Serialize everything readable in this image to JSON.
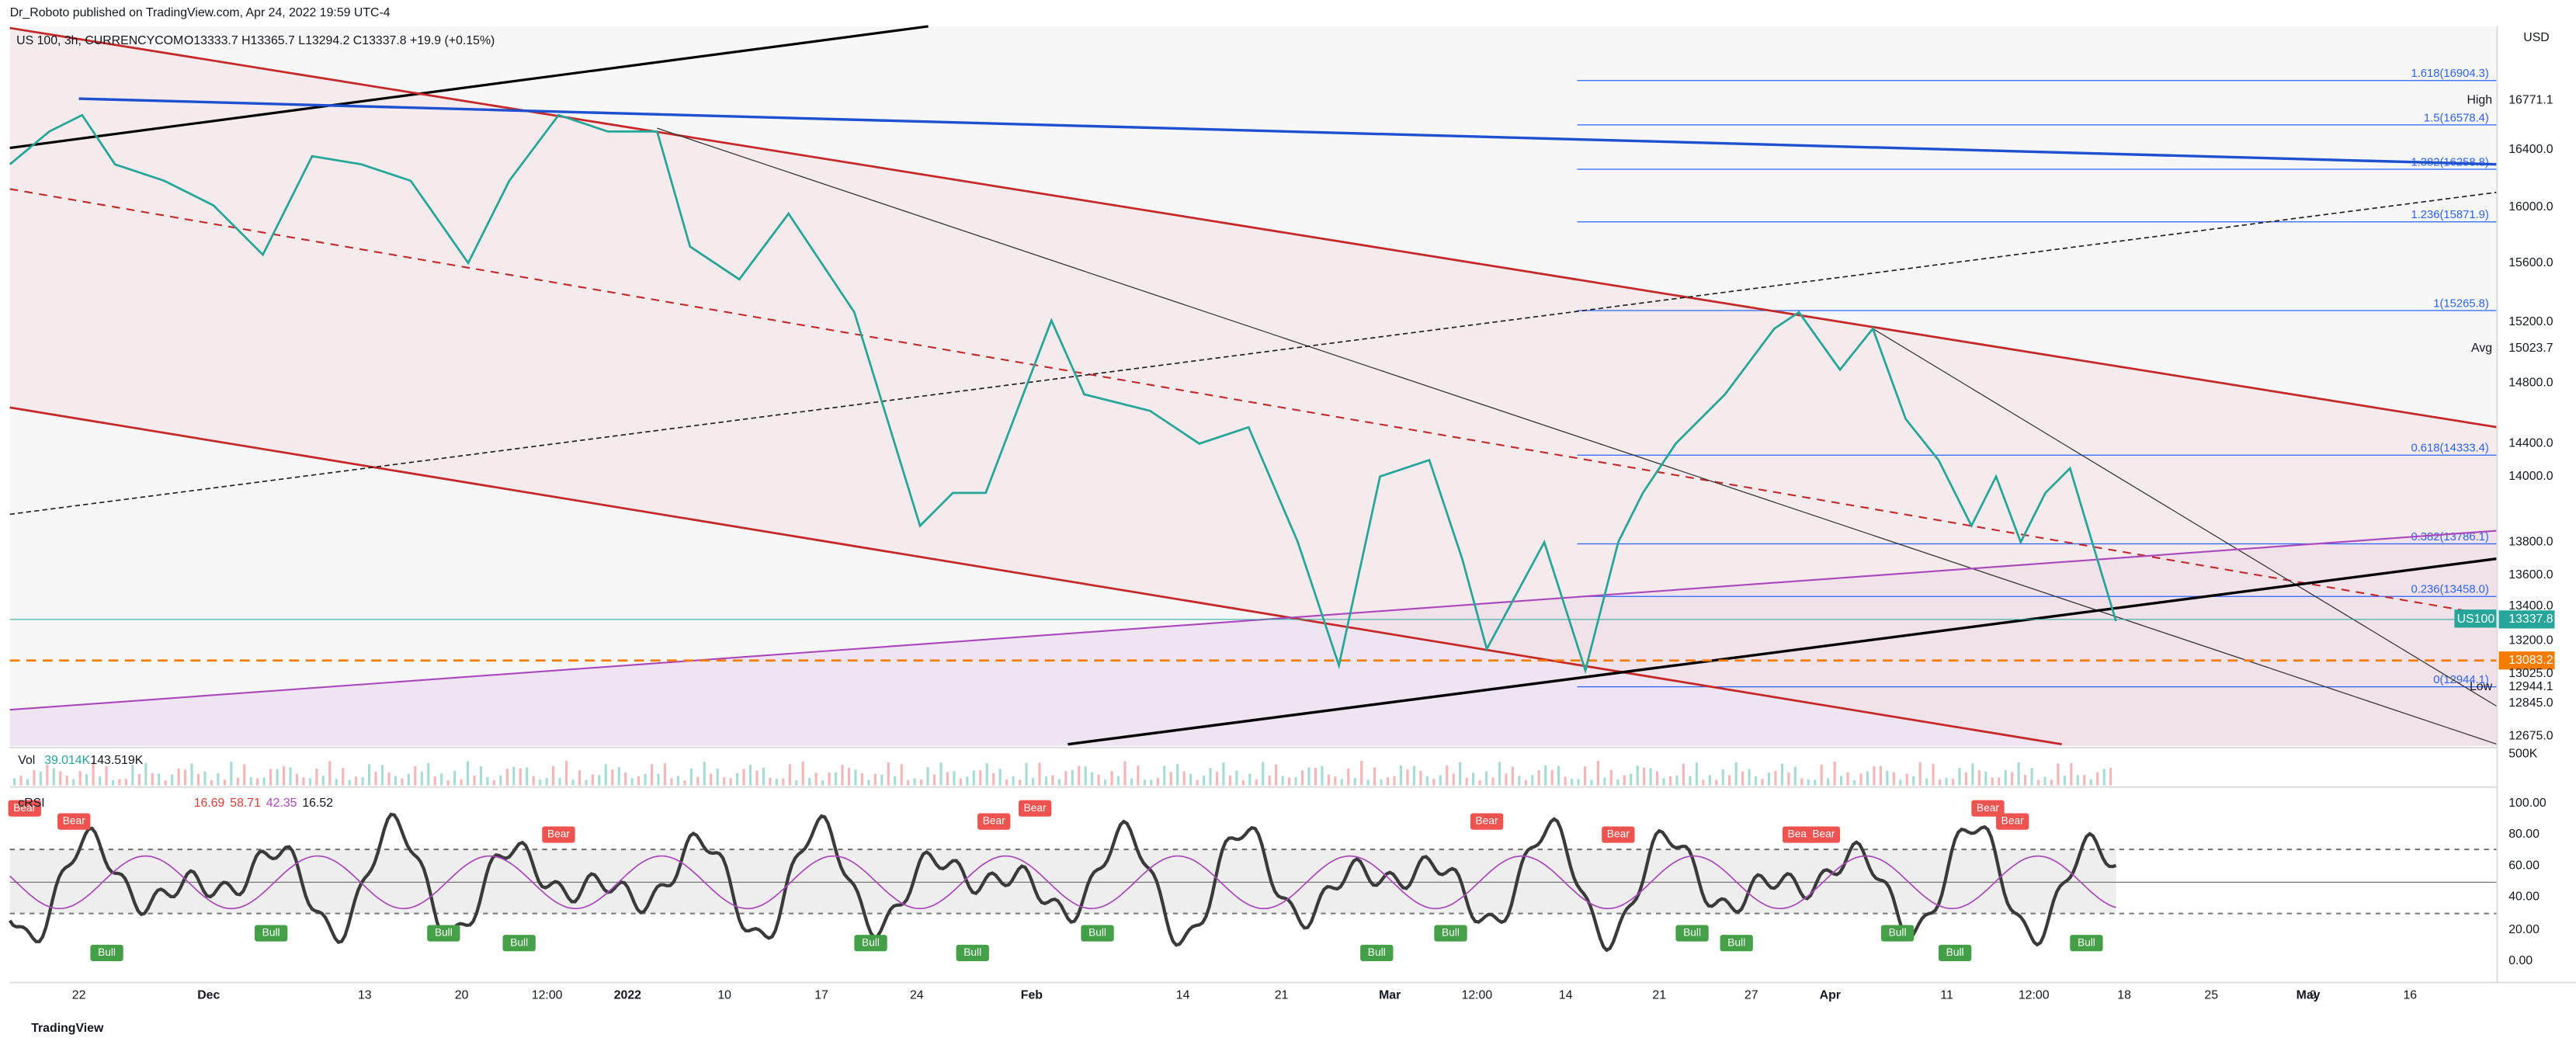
{
  "header": {
    "publisher": "Dr_Roboto published on TradingView.com, Apr 24, 2022 19:59 UTC-4",
    "symbol": "US 100, 3h, CURRENCYCOM",
    "ohlc": "O13333.7 H13365.7 L13294.2 C13337.8 +19.9 (+0.15%)",
    "currency": "USD"
  },
  "price_axis": [
    "16771.1",
    "16400.0",
    "16000.0",
    "15600.0",
    "15200.0",
    "15023.7",
    "14800.0",
    "14400.0",
    "14000.0",
    "13800.0",
    "13600.0",
    "13400.0",
    "13337.8",
    "13200.0",
    "13083.2",
    "13025.0",
    "12944.1",
    "12845.0",
    "12675.0",
    "500K"
  ],
  "axis_tags": {
    "high": "High",
    "avg": "Avg",
    "symbol": "US100",
    "low": "Low"
  },
  "fib_levels": [
    "1.618(16904.3)",
    "1.5(16578.4)",
    "1.382(16258.8)",
    "1.236(15871.9)",
    "1(15265.8)",
    "0.618(14333.4)",
    "0.382(13786.1)",
    "0.236(13458.0)",
    "0(12944.1)"
  ],
  "volume": {
    "label": "Vol",
    "v1": "39.014K",
    "v2": "143.519K"
  },
  "rsi": {
    "label": "cRSI",
    "values": [
      "16.69",
      "58.71",
      "42.35",
      "16.52"
    ],
    "axis": [
      "100.00",
      "80.00",
      "60.00",
      "40.00",
      "20.00",
      "0.00"
    ]
  },
  "signals": [
    "Bear",
    "Bear",
    "Bull",
    "Bull",
    "Bull",
    "Bear",
    "Bear",
    "Bull",
    "Bull",
    "Bull",
    "Bear",
    "Bull",
    "Bull",
    "Bear",
    "Bear",
    "Bull",
    "Bull",
    "Bull",
    "Bear",
    "Bear",
    "Bear",
    "Bull",
    "Bull",
    "Bear",
    "Bull"
  ],
  "time_axis": [
    "22",
    "Dec",
    "13",
    "20",
    "12:00",
    "2022",
    "10",
    "17",
    "24",
    "Feb",
    "14",
    "21",
    "Mar",
    "12:00",
    "14",
    "21",
    "27",
    "Apr",
    "11",
    "12:00",
    "18",
    "25",
    "May",
    "9",
    "16"
  ],
  "footer": "TradingView"
}
